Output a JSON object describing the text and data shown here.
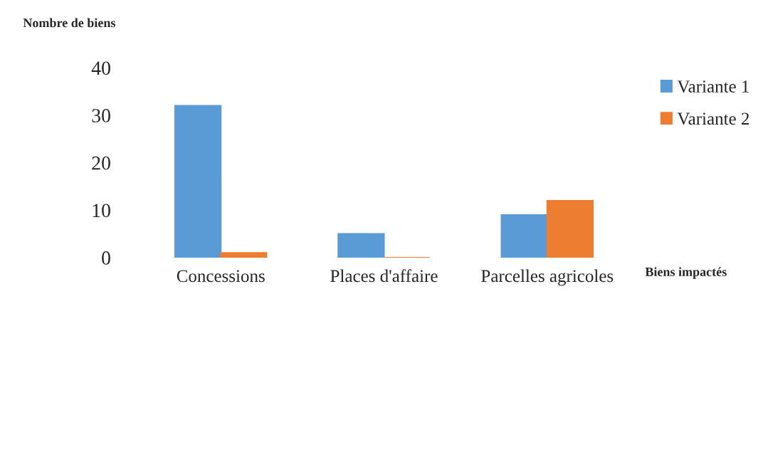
{
  "chart_data": {
    "type": "bar",
    "ylabel": "Nombre de biens",
    "xlabel": "Biens impactés",
    "categories": [
      "Concessions",
      "Places d'affaire",
      "Parcelles agricoles"
    ],
    "series": [
      {
        "name": "Variante 1",
        "color": "#5b9bd5",
        "values": [
          32,
          5,
          9
        ]
      },
      {
        "name": "Variante 2",
        "color": "#ed7d31",
        "values": [
          1,
          0,
          12
        ]
      }
    ],
    "ylim": [
      0,
      40
    ],
    "yticks": [
      0,
      10,
      20,
      30,
      40
    ],
    "grid": false,
    "legend": "top right"
  }
}
